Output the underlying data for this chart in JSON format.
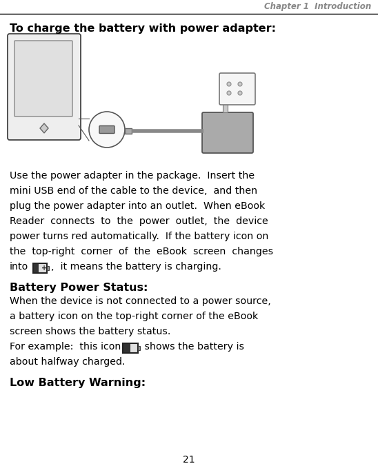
{
  "header_text": "Chapter 1  Introduction",
  "header_color": "#888888",
  "bg_color": "#ffffff",
  "title1": "To charge the battery with power adapter:",
  "title2": "Battery Power Status:",
  "title3": "Low Battery Warning:",
  "page_number": "21",
  "line_color": "#000000",
  "bold_color": "#000000",
  "body_color": "#000000",
  "body_lines1": [
    "Use the power adapter in the package.  Insert the",
    "mini USB end of the cable to the device,  and then",
    "plug the power adapter into an outlet.  When eBook",
    "Reader  connects  to  the  power  outlet,  the  device",
    "power turns red automatically.  If the battery icon on",
    "the  top-right  corner  of  the  eBook  screen  changes"
  ],
  "body_lines2a": [
    "When the device is not connected to a power source,",
    "a battery icon on the top-right corner of the eBook",
    "screen shows the battery status."
  ],
  "line_into": "into",
  "line_into_suffix": ",  it means the battery is charging.",
  "line_forexample": "For example:  this icon",
  "line_forexample_suffix": " shows the battery is",
  "line_halfway": "about halfway charged."
}
